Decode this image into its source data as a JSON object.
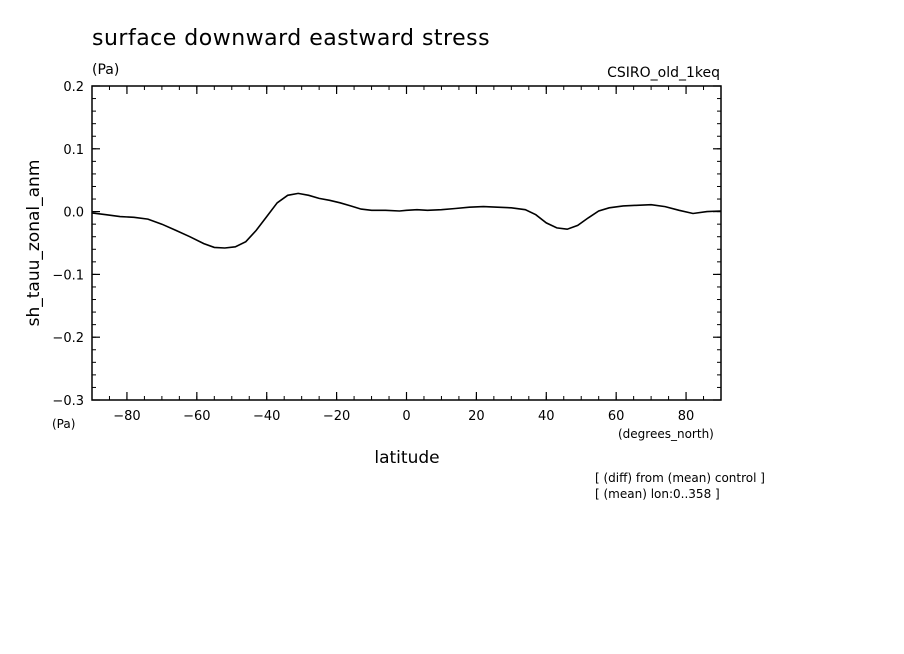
{
  "chart_data": {
    "type": "line",
    "title": "surface downward eastward stress",
    "units_label": "(Pa)",
    "model_label": "CSIRO_old_1keq",
    "ylabel": "sh_tauu_zonal_anm",
    "y_units": "(Pa)",
    "xlabel": "latitude",
    "x_units": "(degrees_north)",
    "notes": [
      "[ (diff) from (mean) control ]",
      "[ (mean) lon:0..358 ]"
    ],
    "xlim": [
      -90,
      90
    ],
    "ylim": [
      -0.3,
      0.2
    ],
    "x_ticks": [
      -80,
      -60,
      -40,
      -20,
      0,
      20,
      40,
      60,
      80
    ],
    "x_tick_labels": [
      "−80",
      "−60",
      "−40",
      "−20",
      "0",
      "20",
      "40",
      "60",
      "80"
    ],
    "y_ticks": [
      0.2,
      0.1,
      0.0,
      -0.1,
      -0.2,
      -0.3
    ],
    "y_tick_labels": [
      "0.2",
      "0.1",
      "0.0",
      "−0.1",
      "−0.2",
      "−0.3"
    ],
    "grid": false,
    "series": [
      {
        "x": [
          -90,
          -86,
          -82,
          -78,
          -74,
          -70,
          -66,
          -62,
          -58,
          -55,
          -52,
          -49,
          -46,
          -43,
          -40,
          -37,
          -34,
          -31,
          -28,
          -25,
          -22,
          -19,
          -16,
          -13,
          -10,
          -6,
          -2,
          0,
          3,
          6,
          10,
          14,
          18,
          22,
          26,
          30,
          34,
          37,
          40,
          43,
          46,
          49,
          52,
          55,
          58,
          62,
          66,
          70,
          74,
          78,
          82,
          86,
          90
        ],
        "y": [
          -0.002,
          -0.005,
          -0.008,
          -0.009,
          -0.012,
          -0.02,
          -0.03,
          -0.04,
          -0.051,
          -0.057,
          -0.058,
          -0.056,
          -0.048,
          -0.03,
          -0.008,
          0.014,
          0.026,
          0.029,
          0.026,
          0.021,
          0.018,
          0.014,
          0.009,
          0.004,
          0.002,
          0.002,
          0.001,
          0.002,
          0.003,
          0.002,
          0.003,
          0.005,
          0.007,
          0.008,
          0.007,
          0.006,
          0.003,
          -0.005,
          -0.018,
          -0.026,
          -0.028,
          -0.022,
          -0.01,
          0.001,
          0.006,
          0.009,
          0.01,
          0.011,
          0.008,
          0.002,
          -0.003,
          0.0,
          0.001
        ]
      }
    ]
  }
}
